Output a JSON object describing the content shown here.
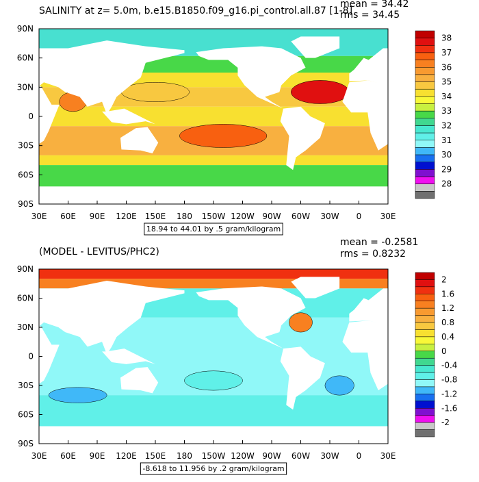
{
  "panels": [
    {
      "title": "SALINITY at z=   5.0m, b.e15.B1850.f09_g16.pi_control.all.87 [1-8]",
      "mean": "mean = 34.42",
      "rms": "rms = 34.45",
      "lat_labels": [
        "90N",
        "60N",
        "30N",
        "0",
        "30S",
        "60S",
        "90S"
      ],
      "lon_labels": [
        "30E",
        "60E",
        "90E",
        "120E",
        "150E",
        "180",
        "150W",
        "120W",
        "90W",
        "60W",
        "30W",
        "0",
        "30E"
      ],
      "colorbar": {
        "labels": [
          "38",
          "37",
          "36",
          "35",
          "34",
          "33",
          "32",
          "31",
          "30",
          "29",
          "28"
        ],
        "colors": [
          "#c00000",
          "#e01010",
          "#f03010",
          "#f86010",
          "#f88020",
          "#f89a30",
          "#f8b040",
          "#f8c840",
          "#f8e030",
          "#f8f838",
          "#c8f040",
          "#48d848",
          "#40d890",
          "#48e8d0",
          "#60f0e8",
          "#90f8f8",
          "#40b8f8",
          "#1870f0",
          "#0010d0",
          "#8010d0",
          "#f010f0",
          "#c8c8c8",
          "#707070"
        ]
      },
      "info": "18.94 to 44.01 by .5 gram/kilogram"
    },
    {
      "title": "(MODEL - LEVITUS/PHC2)",
      "mean": "mean = -0.2581",
      "rms": "rms = 0.8232",
      "lat_labels": [
        "90N",
        "60N",
        "30N",
        "0",
        "30S",
        "60S",
        "90S"
      ],
      "lon_labels": [
        "30E",
        "60E",
        "90E",
        "120E",
        "150E",
        "180",
        "150W",
        "120W",
        "90W",
        "60W",
        "30W",
        "0",
        "30E"
      ],
      "colorbar": {
        "labels": [
          "2",
          "1.6",
          "1.2",
          "0.8",
          "0.4",
          "0",
          "-0.4",
          "-0.8",
          "-1.2",
          "-1.6",
          "-2"
        ],
        "colors": [
          "#c00000",
          "#e01010",
          "#f03010",
          "#f86010",
          "#f88020",
          "#f89a30",
          "#f8b040",
          "#f8c840",
          "#f8e030",
          "#f8f838",
          "#c8f040",
          "#48d848",
          "#40d890",
          "#48e8d0",
          "#60f0e8",
          "#90f8f8",
          "#40b8f8",
          "#1870f0",
          "#0010d0",
          "#8010d0",
          "#f010f0",
          "#c8c8c8",
          "#707070"
        ]
      },
      "info": "-8.618 to 11.956 by .2 gram/kilogram"
    }
  ]
}
